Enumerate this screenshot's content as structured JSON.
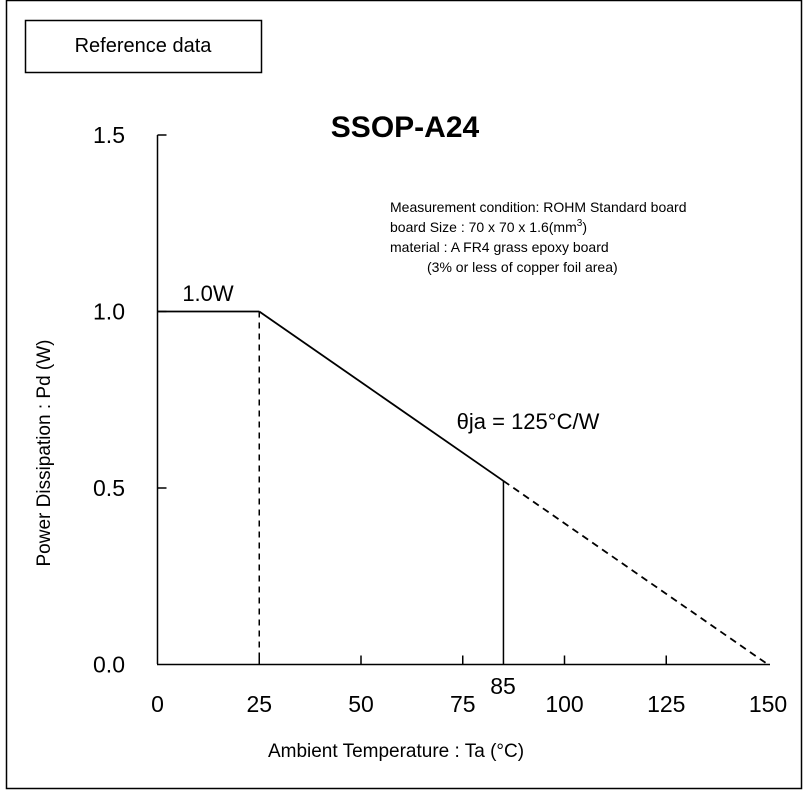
{
  "reference_box": {
    "label": "Reference data"
  },
  "chart_data": {
    "type": "line",
    "title": "SSOP-A24",
    "xlabel": "Ambient Temperature : Ta (°C)",
    "ylabel": "Power Dissipation : Pd (W)",
    "xlim": [
      0,
      150
    ],
    "ylim": [
      0,
      1.5
    ],
    "x_ticks": [
      "0",
      "25",
      "50",
      "75",
      "100",
      "125",
      "150"
    ],
    "y_ticks": [
      "0.0",
      "0.5",
      "1.0",
      "1.5"
    ],
    "grid": false,
    "legend": "none",
    "series": [
      {
        "x": [
          0,
          25,
          85,
          150
        ],
        "y": [
          1.0,
          1.0,
          0.52,
          0.0
        ],
        "segment_styles": [
          "solid",
          "solid",
          "dashed"
        ]
      }
    ],
    "reference_lines": [
      {
        "x": 25,
        "y": 1.0,
        "style": "dashed"
      },
      {
        "x": 85,
        "y": 0.52,
        "style": "solid"
      }
    ],
    "annotations": {
      "max_power": "1.0W",
      "theta": "θja = 125°C/W",
      "x_marker": "85"
    },
    "notes": {
      "line1": "Measurement condition: ROHM Standard board",
      "line2_prefix": "board Size : 70 x 70 x 1.6(mm",
      "line2_sup": "3",
      "line2_suffix": ")",
      "line3": "material : A FR4 grass epoxy board",
      "line4": "(3% or less of copper foil area)"
    }
  }
}
